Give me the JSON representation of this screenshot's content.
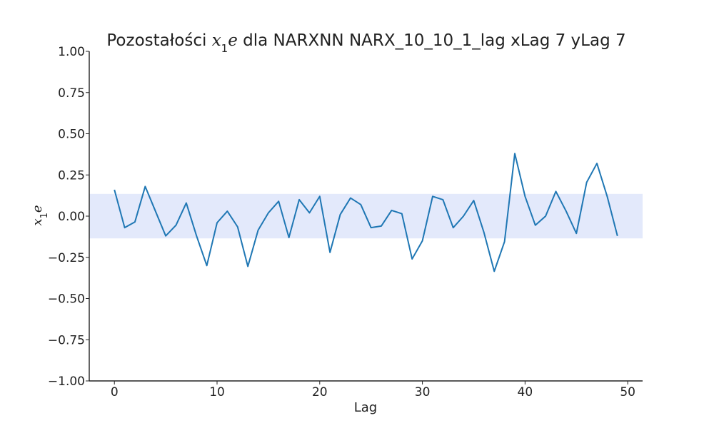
{
  "chart_data": {
    "type": "line",
    "title": {
      "prefix": "Pozostałości ",
      "var_base": "x",
      "var_sub": "1",
      "var_tail": "e",
      "suffix": " dla NARXNN NARX_10_10_1_lag xLag 7 yLag 7"
    },
    "xlabel": "Lag",
    "ylabel": {
      "base": "x",
      "sub": "1",
      "tail": "e"
    },
    "xlim": [
      -2.45,
      51.45
    ],
    "ylim": [
      -1.0,
      1.0
    ],
    "x_ticks": [
      0,
      10,
      20,
      30,
      40,
      50
    ],
    "x_tick_labels": [
      "0",
      "10",
      "20",
      "30",
      "40",
      "50"
    ],
    "y_ticks": [
      -1.0,
      -0.75,
      -0.5,
      -0.25,
      0.0,
      0.25,
      0.5,
      0.75,
      1.0
    ],
    "y_tick_labels": [
      "−1.00",
      "−0.75",
      "−0.50",
      "−0.25",
      "0.00",
      "0.25",
      "0.50",
      "0.75",
      "1.00"
    ],
    "confidence_band": [
      -0.135,
      0.135
    ],
    "grid": false,
    "series": [
      {
        "x": [
          0,
          1,
          2,
          3,
          4,
          5,
          6,
          7,
          8,
          9,
          10,
          11,
          12,
          13,
          14,
          15,
          16,
          17,
          18,
          19,
          20,
          21,
          22,
          23,
          24,
          25,
          26,
          27,
          28,
          29,
          30,
          31,
          32,
          33,
          34,
          35,
          36,
          37,
          38,
          39,
          40,
          41,
          42,
          43,
          44,
          45,
          46,
          47,
          48,
          49
        ],
        "values": [
          0.16,
          -0.07,
          -0.035,
          0.18,
          0.03,
          -0.12,
          -0.055,
          0.08,
          -0.12,
          -0.3,
          -0.04,
          0.03,
          -0.065,
          -0.305,
          -0.085,
          0.02,
          0.09,
          -0.13,
          0.1,
          0.02,
          0.12,
          -0.22,
          0.01,
          0.11,
          0.07,
          -0.07,
          -0.06,
          0.035,
          0.015,
          -0.26,
          -0.15,
          0.12,
          0.1,
          -0.07,
          0.0,
          0.095,
          -0.1,
          -0.335,
          -0.155,
          0.38,
          0.12,
          -0.055,
          0.0,
          0.15,
          0.03,
          -0.105,
          0.205,
          0.32,
          0.12,
          -0.12
        ]
      }
    ],
    "colors": {
      "line": "#1f77b4",
      "band": "#e3e9fb",
      "axis": "#222222",
      "text": "#222222"
    }
  }
}
